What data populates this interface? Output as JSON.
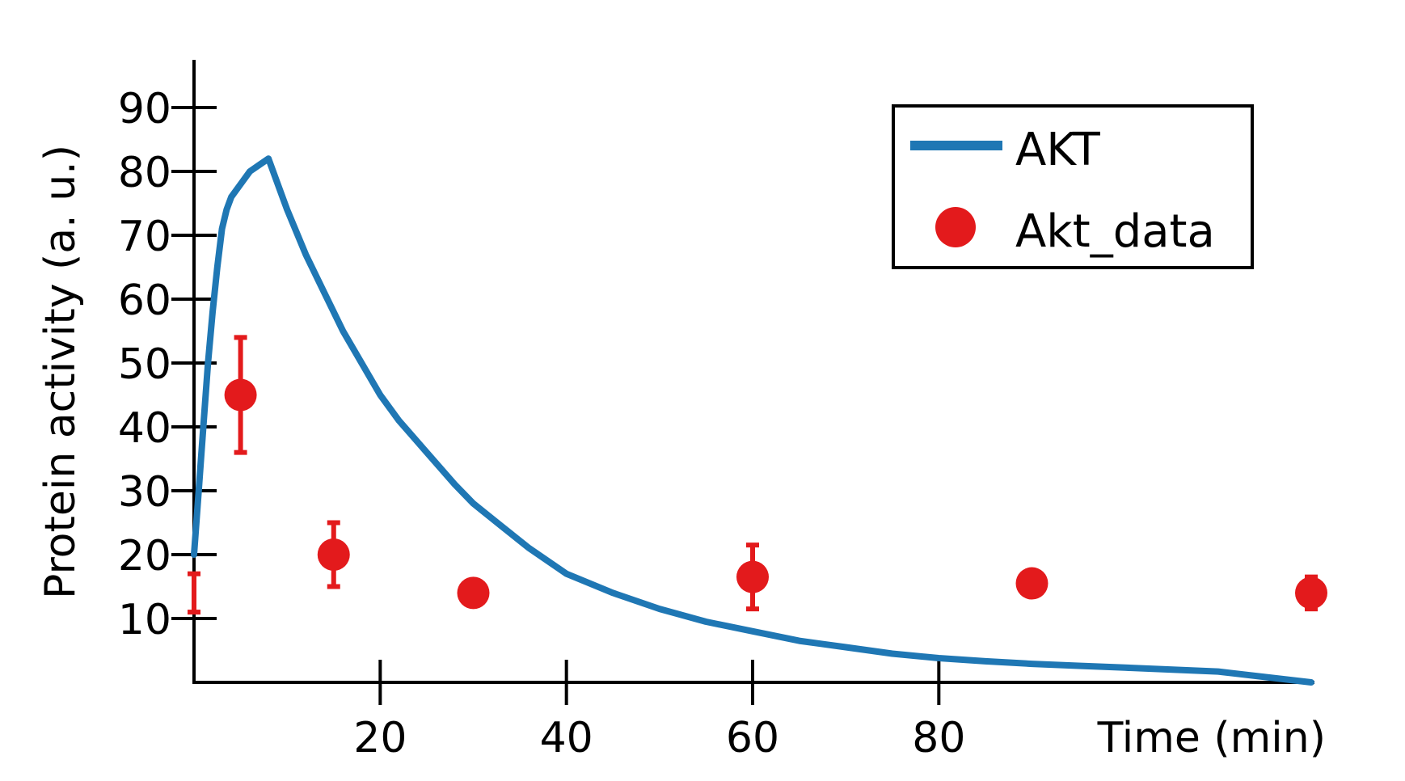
{
  "chart_data": {
    "type": "line",
    "xlabel": "Time (min)",
    "ylabel": "Protein activity (a. u.)",
    "xlim": [
      0,
      120
    ],
    "ylim": [
      0,
      100
    ],
    "x_ticks": [
      20,
      40,
      60,
      80
    ],
    "y_ticks": [
      10,
      20,
      30,
      40,
      50,
      60,
      70,
      80,
      90
    ],
    "grid": false,
    "legend_position": "top-right",
    "series": [
      {
        "name": "AKT",
        "kind": "line",
        "color": "#1f77b4",
        "x": [
          0,
          0.5,
          1,
          1.5,
          2,
          2.5,
          3,
          3.5,
          4,
          5,
          6,
          7,
          8,
          9,
          10,
          12,
          14,
          16,
          18,
          20,
          22,
          25,
          28,
          30,
          33,
          36,
          40,
          45,
          50,
          55,
          60,
          65,
          70,
          75,
          80,
          85,
          90,
          95,
          100,
          110,
          120
        ],
        "y": [
          20,
          30,
          40,
          50,
          58,
          65,
          71,
          74,
          76,
          78,
          80,
          81,
          82,
          78,
          74,
          67,
          61,
          55,
          50,
          45,
          41,
          36,
          31,
          28,
          24.5,
          21,
          17,
          14,
          11.5,
          9.5,
          8,
          6.5,
          5.5,
          4.5,
          3.8,
          3.3,
          2.9,
          2.6,
          2.3,
          1.7,
          0
        ]
      },
      {
        "name": "Akt_data",
        "kind": "scatter",
        "color": "#e31a1c",
        "x": [
          0,
          5,
          15,
          30,
          60,
          90,
          120
        ],
        "y": [
          14,
          45,
          20,
          14,
          16.5,
          15.5,
          14
        ],
        "error": [
          3,
          9,
          5,
          0,
          5,
          0,
          2.5
        ]
      }
    ]
  }
}
